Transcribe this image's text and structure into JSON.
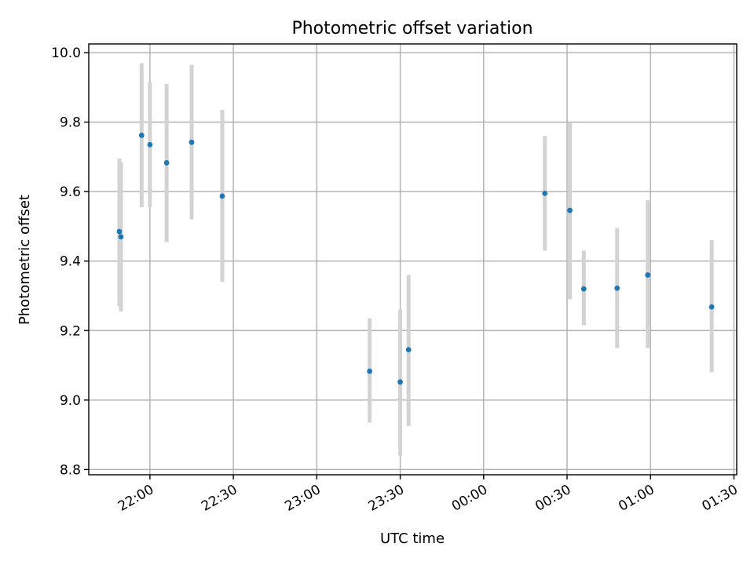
{
  "chart_data": {
    "type": "scatter",
    "title": "Photometric offset variation",
    "xlabel": "UTC time",
    "ylabel": "Photometric offset",
    "x_axis_type": "time",
    "x_tick_labels": [
      "22:00",
      "22:30",
      "23:00",
      "23:30",
      "00:00",
      "00:30",
      "01:00",
      "01:30"
    ],
    "y_tick_labels": [
      "8.8",
      "9.0",
      "9.2",
      "9.4",
      "9.6",
      "9.8",
      "10.0"
    ],
    "y_ticks": [
      8.8,
      9.0,
      9.2,
      9.4,
      9.6,
      9.8,
      10.0
    ],
    "ylim": [
      8.785,
      10.025
    ],
    "xlim": [
      "21:38",
      "01:31"
    ],
    "grid": true,
    "point_color": "#1f77b4",
    "error_bar_color": "#d3d3d3",
    "points": [
      {
        "time": "21:49",
        "value": 9.485,
        "err_low": 9.27,
        "err_high": 9.695
      },
      {
        "time": "21:49",
        "value": 9.47,
        "err_low": 9.255,
        "err_high": 9.685
      },
      {
        "time": "21:57",
        "value": 9.762,
        "err_low": 9.555,
        "err_high": 9.97
      },
      {
        "time": "22:00",
        "value": 9.735,
        "err_low": 9.555,
        "err_high": 9.915
      },
      {
        "time": "22:06",
        "value": 9.683,
        "err_low": 9.455,
        "err_high": 9.91
      },
      {
        "time": "22:15",
        "value": 9.742,
        "err_low": 9.52,
        "err_high": 9.965
      },
      {
        "time": "22:26",
        "value": 9.587,
        "err_low": 9.34,
        "err_high": 9.835
      },
      {
        "time": "23:19",
        "value": 9.083,
        "err_low": 8.935,
        "err_high": 9.235
      },
      {
        "time": "23:30",
        "value": 9.052,
        "err_low": 8.84,
        "err_high": 9.26
      },
      {
        "time": "23:33",
        "value": 9.145,
        "err_low": 8.925,
        "err_high": 9.36
      },
      {
        "time": "00:22",
        "value": 9.595,
        "err_low": 9.43,
        "err_high": 9.76
      },
      {
        "time": "00:31",
        "value": 9.546,
        "err_low": 9.29,
        "err_high": 9.8
      },
      {
        "time": "00:36",
        "value": 9.32,
        "err_low": 9.215,
        "err_high": 9.43
      },
      {
        "time": "00:48",
        "value": 9.322,
        "err_low": 9.15,
        "err_high": 9.495
      },
      {
        "time": "00:59",
        "value": 9.36,
        "err_low": 9.15,
        "err_high": 9.575
      },
      {
        "time": "01:22",
        "value": 9.268,
        "err_low": 9.08,
        "err_high": 9.46
      }
    ]
  }
}
